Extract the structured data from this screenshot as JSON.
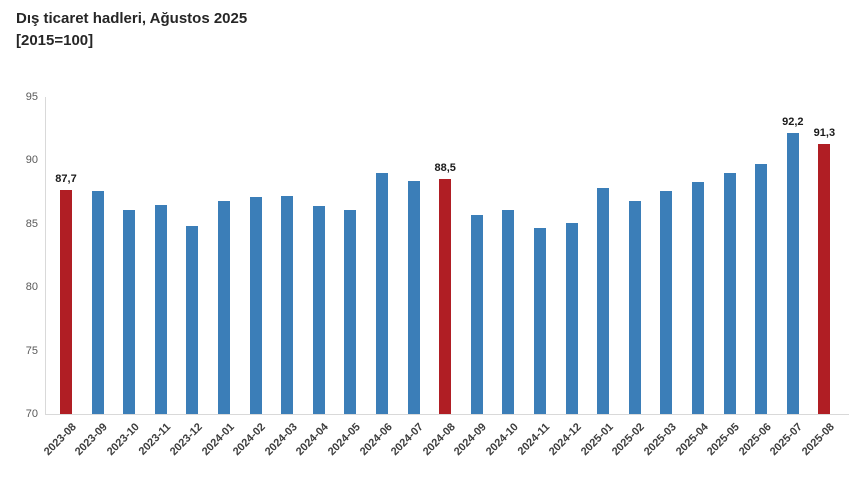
{
  "header": {
    "title_line1": "Dış ticaret hadleri, Ağustos 2025",
    "title_line2": "[2015=100]"
  },
  "chart_data": {
    "type": "bar",
    "title": "Dış ticaret hadleri, Ağustos 2025 [2015=100]",
    "xlabel": "",
    "ylabel": "",
    "ylim": [
      70,
      95
    ],
    "yticks": [
      70,
      75,
      80,
      85,
      90,
      95
    ],
    "grid": false,
    "legend": "none",
    "decimal_separator": ",",
    "categories": [
      "2023-08",
      "2023-09",
      "2023-10",
      "2023-11",
      "2023-12",
      "2024-01",
      "2024-02",
      "2024-03",
      "2024-04",
      "2024-05",
      "2024-06",
      "2024-07",
      "2024-08",
      "2024-09",
      "2024-10",
      "2024-11",
      "2024-12",
      "2025-01",
      "2025-02",
      "2025-03",
      "2025-04",
      "2025-05",
      "2025-06",
      "2025-07",
      "2025-08"
    ],
    "values": [
      87.7,
      87.6,
      86.1,
      86.5,
      84.8,
      86.8,
      87.1,
      87.2,
      86.4,
      86.1,
      89.0,
      88.4,
      88.5,
      85.7,
      86.1,
      84.7,
      85.1,
      87.8,
      86.8,
      87.6,
      88.3,
      89.0,
      89.7,
      92.2,
      91.3
    ],
    "highlight_indices": [
      0,
      12,
      24
    ],
    "data_labels": [
      {
        "index": 0,
        "text": "87,7"
      },
      {
        "index": 12,
        "text": "88,5"
      },
      {
        "index": 23,
        "text": "92,2"
      },
      {
        "index": 24,
        "text": "91,3"
      }
    ],
    "colors": {
      "bar": "#3B7EB8",
      "highlight": "#B01E24",
      "axis": "#d9d9d9",
      "tick_text": "#595959",
      "category_text": "#3d3d3d",
      "label_text": "#1a1a1a"
    }
  }
}
